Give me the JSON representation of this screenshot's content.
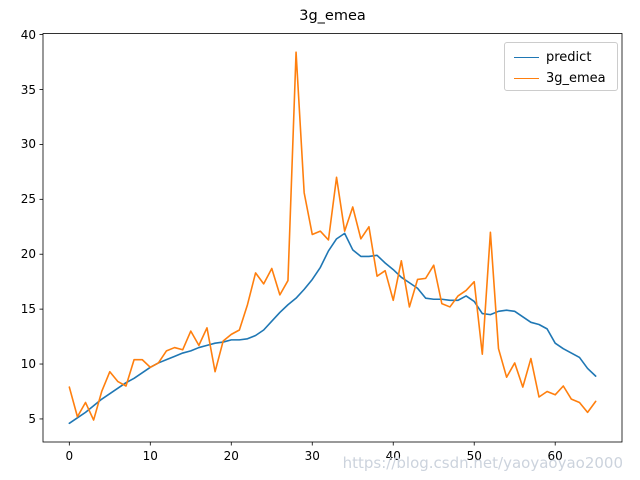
{
  "figure": {
    "title": "3g_emea"
  },
  "watermark": "https://blog.csdn.net/yaoyaoyao2000",
  "chart_data": {
    "type": "line",
    "title": "3g_emea",
    "xlabel": "",
    "ylabel": "",
    "grid": false,
    "xlim": [
      -3.25,
      68.25
    ],
    "ylim": [
      2.9,
      40.1
    ],
    "xticks": [
      0,
      10,
      20,
      30,
      40,
      50,
      60
    ],
    "yticks": [
      5,
      10,
      15,
      20,
      25,
      30,
      35,
      40
    ],
    "legend": {
      "position": "upper right",
      "frame": true
    },
    "x": [
      0,
      1,
      2,
      3,
      4,
      5,
      6,
      7,
      8,
      9,
      10,
      11,
      12,
      13,
      14,
      15,
      16,
      17,
      18,
      19,
      20,
      21,
      22,
      23,
      24,
      25,
      26,
      27,
      28,
      29,
      30,
      31,
      32,
      33,
      34,
      35,
      36,
      37,
      38,
      39,
      40,
      41,
      42,
      43,
      44,
      45,
      46,
      47,
      48,
      49,
      50,
      51,
      52,
      53,
      54,
      55,
      56,
      57,
      58,
      59,
      60,
      61,
      62,
      63,
      64,
      65
    ],
    "series": [
      {
        "name": "predict",
        "color": "#1f77b4",
        "values": [
          4.6,
          5.1,
          5.6,
          6.2,
          6.8,
          7.3,
          7.8,
          8.3,
          8.7,
          9.2,
          9.7,
          10.1,
          10.4,
          10.7,
          11.0,
          11.2,
          11.5,
          11.7,
          11.9,
          12.0,
          12.2,
          12.2,
          12.3,
          12.6,
          13.1,
          13.9,
          14.7,
          15.4,
          16.0,
          16.8,
          17.7,
          18.8,
          20.3,
          21.4,
          21.9,
          20.4,
          19.8,
          19.8,
          19.9,
          19.2,
          18.6,
          17.9,
          17.4,
          16.9,
          16.0,
          15.9,
          15.9,
          15.8,
          15.8,
          16.2,
          15.7,
          14.6,
          14.5,
          14.8,
          14.9,
          14.8,
          14.3,
          13.8,
          13.6,
          13.2,
          11.9,
          11.4,
          11.0,
          10.6,
          9.6,
          8.9
        ]
      },
      {
        "name": "3g_emea",
        "color": "#ff7f0e",
        "values": [
          7.9,
          5.2,
          6.5,
          4.9,
          7.5,
          9.3,
          8.4,
          8.0,
          10.4,
          10.4,
          9.7,
          10.1,
          11.2,
          11.5,
          11.3,
          13.0,
          11.7,
          13.3,
          9.3,
          12.1,
          12.7,
          13.1,
          15.4,
          18.3,
          17.3,
          18.7,
          16.3,
          17.6,
          38.4,
          25.6,
          21.8,
          22.1,
          21.3,
          27.0,
          22.1,
          24.3,
          21.4,
          22.5,
          18.0,
          18.5,
          15.8,
          19.4,
          15.2,
          17.7,
          17.8,
          19.0,
          15.5,
          15.2,
          16.2,
          16.7,
          17.5,
          10.9,
          22.0,
          11.4,
          8.8,
          10.1,
          7.9,
          10.5,
          7.0,
          7.5,
          7.2,
          8.0,
          6.8,
          6.5,
          5.6,
          6.6
        ]
      }
    ]
  },
  "colors": {
    "spine": "#000000",
    "background": "#ffffff",
    "watermark": "#ccd3dd",
    "legend_border": "#cccccc"
  }
}
